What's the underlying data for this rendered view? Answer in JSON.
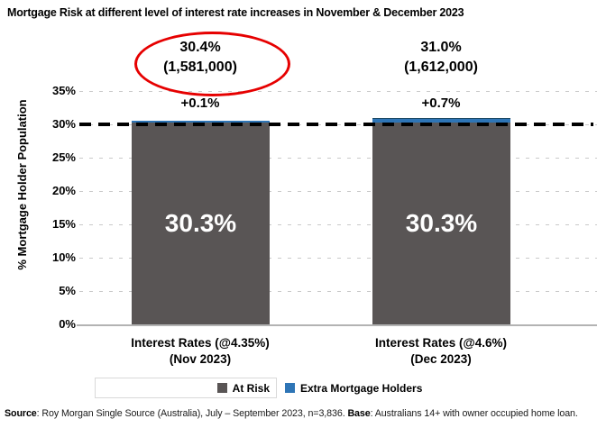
{
  "title": "Mortgage Risk at different level of interest rate increases in November & December 2023",
  "y_axis": {
    "label": "% Mortgage Holder Population",
    "ticks": [
      "0%",
      "5%",
      "10%",
      "15%",
      "20%",
      "25%",
      "30%",
      "35%"
    ]
  },
  "bars": [
    {
      "total_label": "30.4%",
      "count_label": "(1,581,000)",
      "delta_label": "+0.1%",
      "at_risk_label": "30.3%",
      "x_label_line1": "Interest Rates (@4.35%)",
      "x_label_line2": "(Nov 2023)",
      "circled": true
    },
    {
      "total_label": "31.0%",
      "count_label": "(1,612,000)",
      "delta_label": "+0.7%",
      "at_risk_label": "30.3%",
      "x_label_line1": "Interest Rates (@4.6%)",
      "x_label_line2": "(Dec 2023)",
      "circled": false
    }
  ],
  "legend": {
    "at_risk": "At Risk",
    "extra": "Extra Mortgage Holders"
  },
  "footer": {
    "source_label": "Source",
    "source_text": ": Roy Morgan Single Source (Australia), July – September 2023, n=3,836. ",
    "base_label": "Base",
    "base_text": ": Australians 14+ with owner occupied home loan."
  },
  "colors": {
    "at_risk": "#595555",
    "extra_fill": "#2e75b6",
    "extra_border": "#1c4966",
    "highlight_circle": "#e60000",
    "reference_line": "#000000",
    "gridline": "#c9c9c9"
  },
  "chart_data": {
    "type": "bar",
    "stacked": true,
    "categories": [
      "Interest Rates (@4.35%) (Nov 2023)",
      "Interest Rates (@4.6%) (Dec 2023)"
    ],
    "series": [
      {
        "name": "At Risk",
        "color": "#595555",
        "values": [
          30.3,
          30.3
        ]
      },
      {
        "name": "Extra Mortgage Holders",
        "color": "#2e75b6",
        "values": [
          0.1,
          0.7
        ]
      }
    ],
    "totals_pct": [
      30.4,
      31.0
    ],
    "totals_population": [
      1581000,
      1612000
    ],
    "deltas_pct": [
      0.1,
      0.7
    ],
    "reference_line_y": 30,
    "title": "Mortgage Risk at different level of interest rate increases in November & December 2023",
    "xlabel": "",
    "ylabel": "% Mortgage Holder Population",
    "ylim": [
      0,
      35
    ],
    "ytick_step": 5,
    "grid": "horizontal-dashed",
    "legend_position": "bottom",
    "annotation_circled": "30.4% (1,581,000)"
  }
}
